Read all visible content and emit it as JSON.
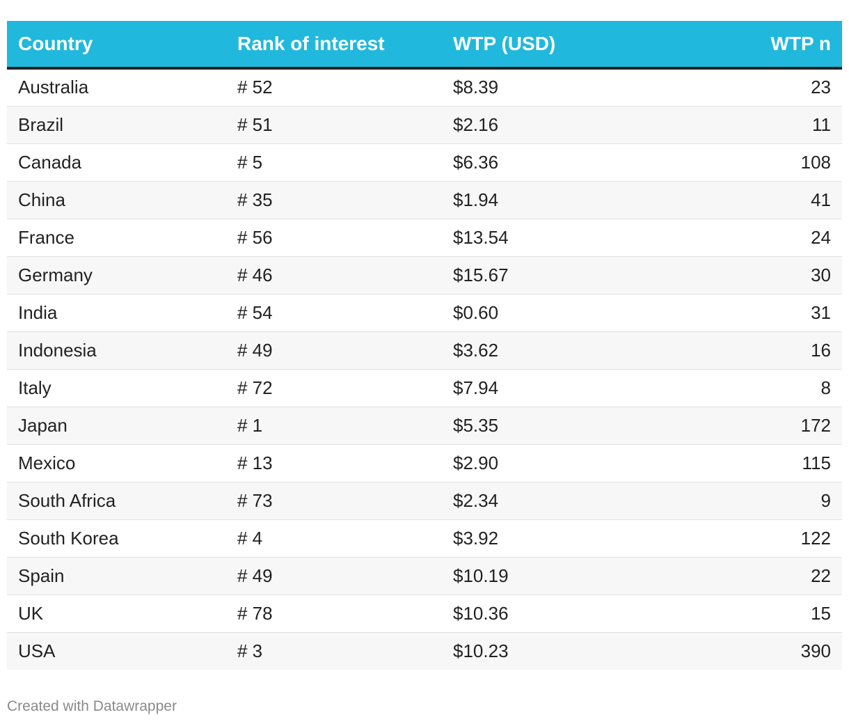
{
  "chart_data": {
    "type": "table",
    "columns": [
      "Country",
      "Rank of interest",
      "WTP (USD)",
      "WTP n"
    ],
    "rows": [
      {
        "country": "Australia",
        "rank": "# 52",
        "wtp": "$8.39",
        "n": "23"
      },
      {
        "country": "Brazil",
        "rank": "# 51",
        "wtp": "$2.16",
        "n": "11"
      },
      {
        "country": "Canada",
        "rank": "# 5",
        "wtp": "$6.36",
        "n": "108"
      },
      {
        "country": "China",
        "rank": "# 35",
        "wtp": "$1.94",
        "n": "41"
      },
      {
        "country": "France",
        "rank": "# 56",
        "wtp": "$13.54",
        "n": "24"
      },
      {
        "country": "Germany",
        "rank": "# 46",
        "wtp": "$15.67",
        "n": "30"
      },
      {
        "country": "India",
        "rank": "# 54",
        "wtp": "$0.60",
        "n": "31"
      },
      {
        "country": "Indonesia",
        "rank": "# 49",
        "wtp": "$3.62",
        "n": "16"
      },
      {
        "country": "Italy",
        "rank": "# 72",
        "wtp": "$7.94",
        "n": "8"
      },
      {
        "country": "Japan",
        "rank": "# 1",
        "wtp": "$5.35",
        "n": "172"
      },
      {
        "country": "Mexico",
        "rank": "# 13",
        "wtp": "$2.90",
        "n": "115"
      },
      {
        "country": "South Africa",
        "rank": "# 73",
        "wtp": "$2.34",
        "n": "9"
      },
      {
        "country": "South Korea",
        "rank": "# 4",
        "wtp": "$3.92",
        "n": "122"
      },
      {
        "country": "Spain",
        "rank": "# 49",
        "wtp": "$10.19",
        "n": "22"
      },
      {
        "country": "UK",
        "rank": "# 78",
        "wtp": "$10.36",
        "n": "15"
      },
      {
        "country": "USA",
        "rank": "# 3",
        "wtp": "$10.23",
        "n": "390"
      }
    ]
  },
  "footer": {
    "credit": "Created with Datawrapper"
  },
  "colors": {
    "header_background": "#20b8dc",
    "header_text": "#ffffff",
    "header_rule": "#222222",
    "stripe": "#f7f7f7"
  }
}
